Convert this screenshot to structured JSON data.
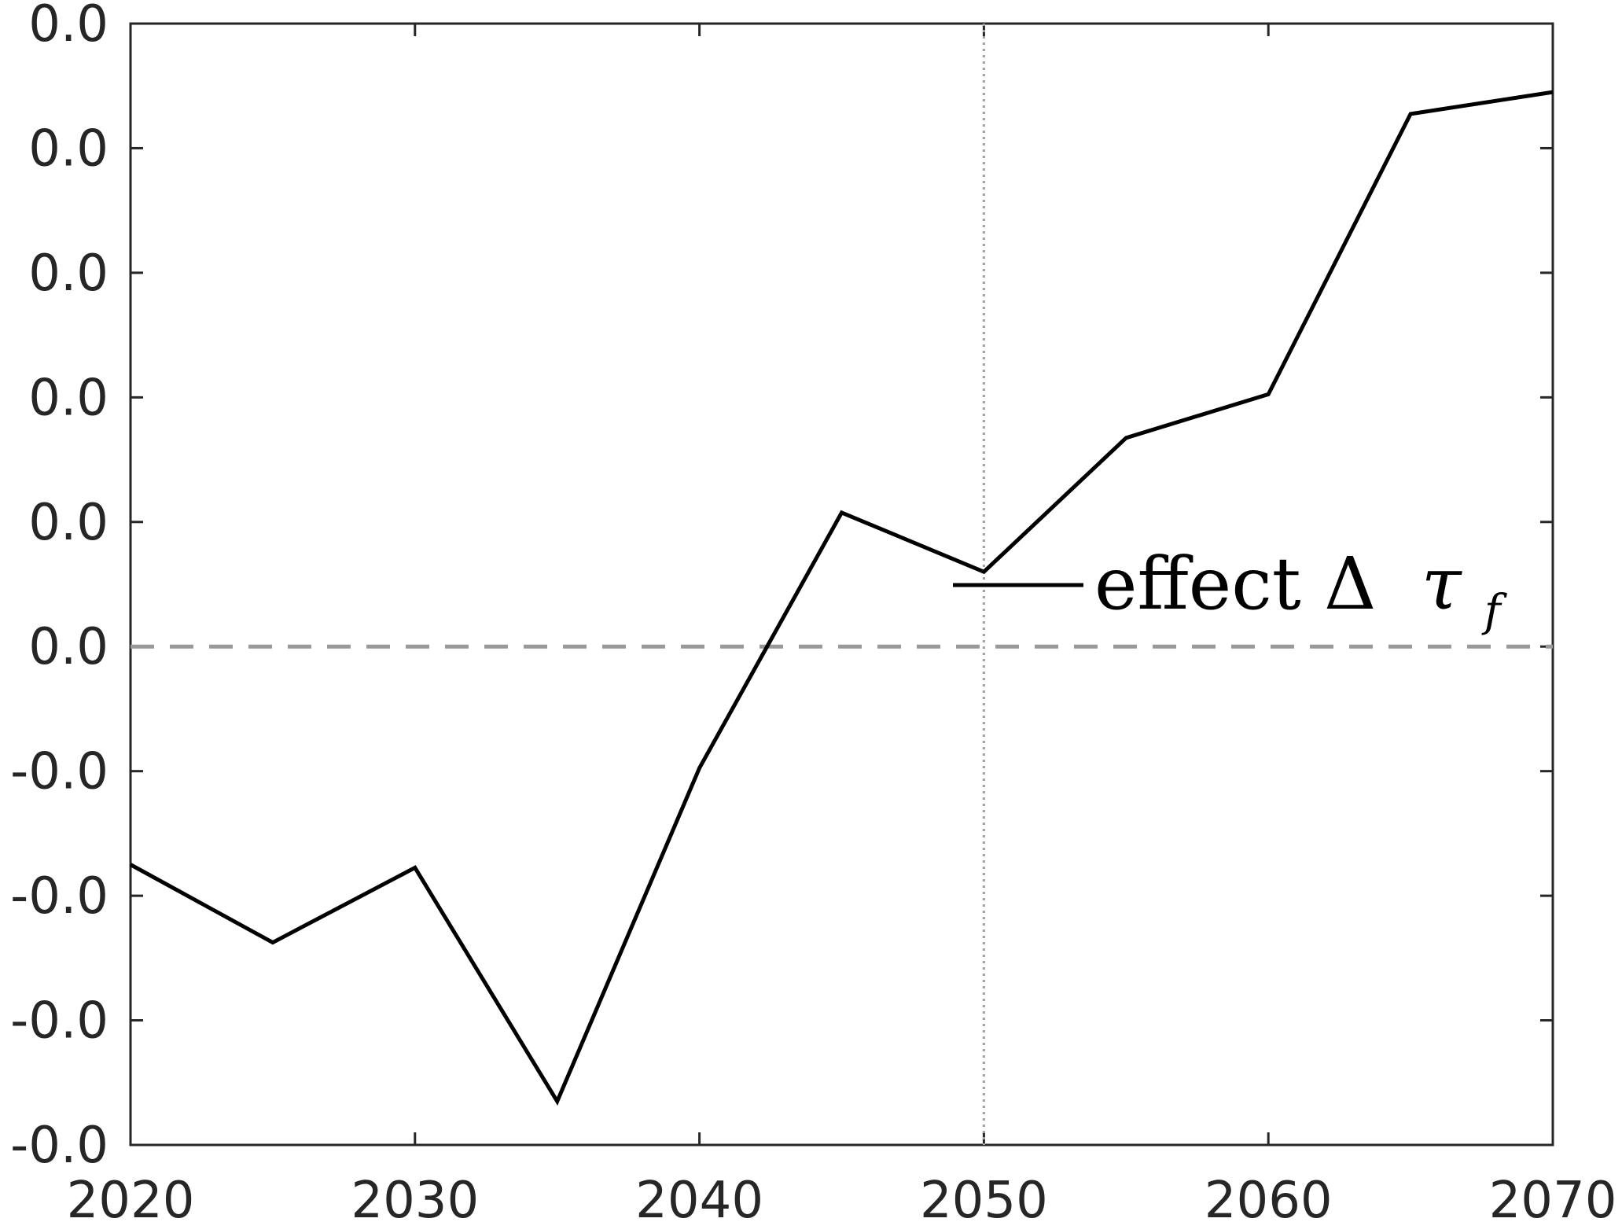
{
  "chart_data": {
    "type": "line",
    "xlim": [
      2020,
      2070
    ],
    "ylim": [
      -0.09,
      0.09
    ],
    "x_ticks": [
      2020,
      2030,
      2040,
      2050,
      2060,
      2070
    ],
    "x_tick_labels": [
      "2020",
      "2030",
      "2040",
      "2050",
      "2060",
      "2070"
    ],
    "y_ticks": [
      0.09,
      0.07,
      0.05,
      0.03,
      0.01,
      -0.01,
      -0.03,
      -0.05,
      -0.07,
      -0.09
    ],
    "y_tick_labels": [
      "0.0",
      "0.0",
      "0.0",
      "0.0",
      "0.0",
      "0.0",
      "-0.0",
      "-0.0",
      "-0.0",
      "-0.0"
    ],
    "grid": false,
    "reference_lines": {
      "horizontal_dashed_y": -0.01,
      "vertical_dotted_x": 2050
    },
    "legend_placement": "center-right",
    "series": [
      {
        "name": "effect Δ τ_f",
        "legend_main": "effect Δ",
        "legend_symbol": "τ",
        "legend_subscript": "f",
        "color": "#000000",
        "x": [
          2020,
          2025,
          2030,
          2035,
          2040,
          2045,
          2050,
          2055,
          2060,
          2065,
          2070
        ],
        "y": [
          -0.045,
          -0.0575,
          -0.0455,
          -0.083,
          -0.0295,
          0.0115,
          0.002,
          0.0235,
          0.0305,
          0.0755,
          0.079
        ]
      }
    ],
    "colors": {
      "axis": "#262626",
      "reference": "#999999",
      "vertical_reference": "#a0a0a0"
    }
  }
}
